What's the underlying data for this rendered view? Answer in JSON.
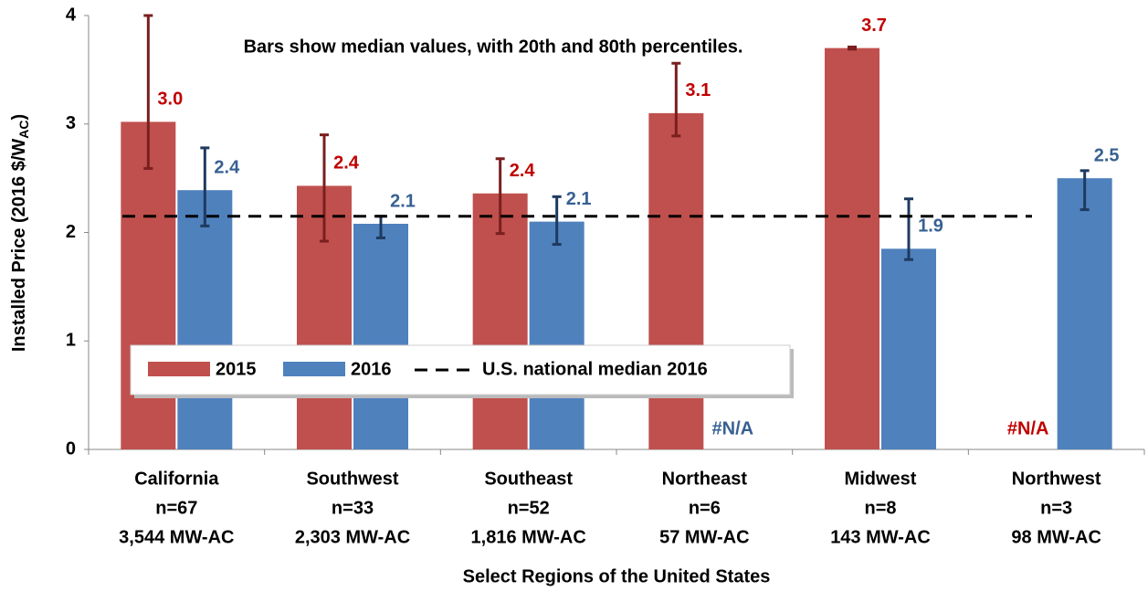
{
  "chart_data": {
    "type": "bar",
    "annotation": "Bars show median values, with 20th and 80th percentiles.",
    "x_label": "Select Regions of the United States",
    "y_label": [
      "Installed Price (2016 $/W",
      "AC",
      ")"
    ],
    "categories": [
      [
        "California",
        "n=67",
        "3,544 MW-AC"
      ],
      [
        "Southwest",
        "n=33",
        "2,303 MW-AC"
      ],
      [
        "Southeast",
        "n=52",
        "1,816 MW-AC"
      ],
      [
        "Northeast",
        "n=6",
        "57 MW-AC"
      ],
      [
        "Midwest",
        "n=8",
        "143 MW-AC"
      ],
      [
        "Northwest",
        "n=3",
        "98 MW-AC"
      ]
    ],
    "series": [
      {
        "name": "2015",
        "color": "#c0504d",
        "label_color": "#c00000",
        "error_color": "#7a1f1f",
        "values": [
          3.02,
          2.43,
          2.36,
          3.1,
          3.7,
          null
        ],
        "value_labels": [
          "3.0",
          "2.4",
          "2.4",
          "3.1",
          "3.7",
          "#N/A"
        ],
        "low": [
          2.59,
          1.92,
          1.99,
          2.89,
          3.69,
          null
        ],
        "high": [
          4.0,
          2.9,
          2.68,
          3.56,
          3.71,
          null
        ]
      },
      {
        "name": "2016",
        "color": "#4f81bd",
        "label_color": "#376092",
        "error_color": "#1f3a5f",
        "values": [
          2.39,
          2.08,
          2.1,
          null,
          1.85,
          2.5
        ],
        "value_labels": [
          "2.4",
          "2.1",
          "2.1",
          "#N/A",
          "1.9",
          "2.5"
        ],
        "low": [
          2.06,
          1.95,
          1.89,
          null,
          1.75,
          2.21
        ],
        "high": [
          2.78,
          2.15,
          2.33,
          null,
          2.31,
          2.57
        ]
      }
    ],
    "reference_lines": [
      {
        "name": "U.S. national median 2016",
        "value": 2.15,
        "color": "#000000"
      }
    ],
    "ylim": [
      0,
      4
    ],
    "yticks": [
      0,
      1,
      2,
      3,
      4
    ],
    "grid": false
  }
}
